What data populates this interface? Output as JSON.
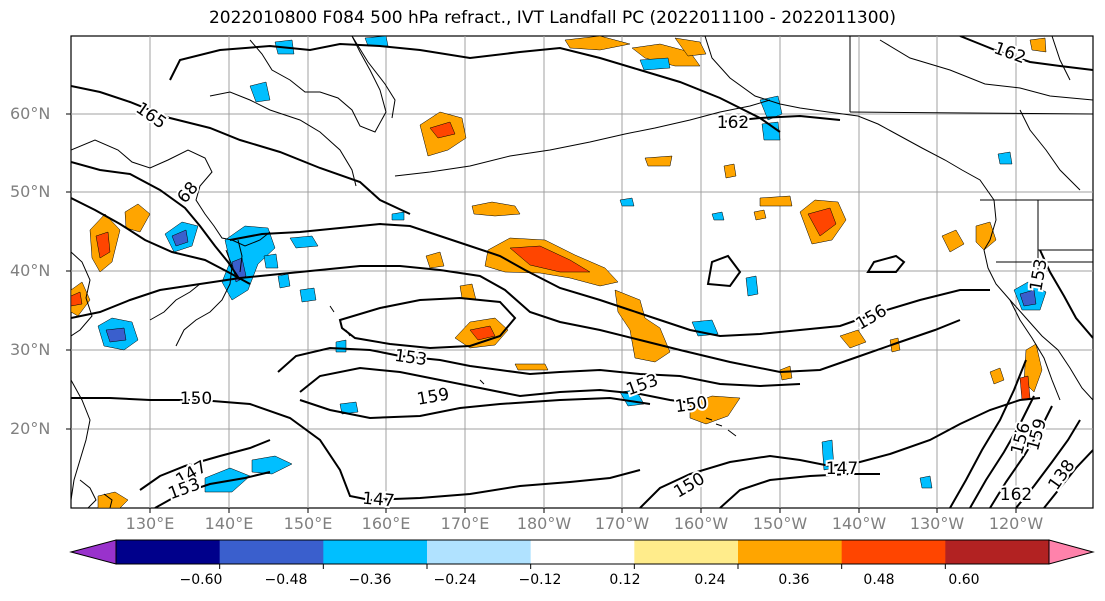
{
  "title": "2022010800 F084 500 hPa refract., IVT Landfall PC (2022011100 - 2022011300)",
  "lat_labels": [
    "60°N",
    "50°N",
    "40°N",
    "30°N",
    "20°N"
  ],
  "lon_labels": [
    "130°E",
    "140°E",
    "150°E",
    "160°E",
    "170°E",
    "180°W",
    "170°W",
    "160°W",
    "150°W",
    "140°W",
    "130°W",
    "120°W"
  ],
  "contour_labels": [
    "165",
    "68",
    "162",
    "162",
    "153",
    "156",
    "153",
    "159",
    "150",
    "150",
    "153",
    "147",
    "147",
    "150",
    "147",
    "162",
    "156",
    "159",
    "138",
    "153"
  ],
  "colorbar": {
    "colors": [
      "#9932cc",
      "#00008b",
      "#3a5fcd",
      "#00bfff",
      "#b0e2ff",
      "#ffffff",
      "#ffec8b",
      "#ffa500",
      "#ff4500",
      "#b22222",
      "#ff82ab"
    ],
    "ticks": [
      "−0.60",
      "−0.48",
      "−0.36",
      "−0.24",
      "−0.12",
      "0.12",
      "0.24",
      "0.36",
      "0.48",
      "0.60"
    ]
  }
}
